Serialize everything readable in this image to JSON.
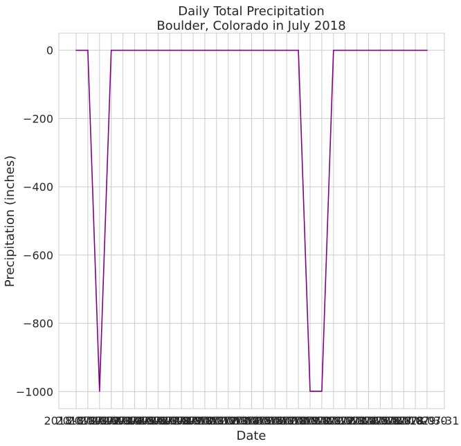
{
  "chart_data": {
    "type": "line",
    "title": "Daily Total Precipitation",
    "subtitle": "Boulder, Colorado in July 2018",
    "xlabel": "Date",
    "ylabel": "Precipitation (inches)",
    "x": [
      "2018-07-01",
      "2018-07-02",
      "2018-07-03",
      "2018-07-04",
      "2018-07-05",
      "2018-07-06",
      "2018-07-07",
      "2018-07-08",
      "2018-07-09",
      "2018-07-10",
      "2018-07-11",
      "2018-07-12",
      "2018-07-13",
      "2018-07-14",
      "2018-07-15",
      "2018-07-16",
      "2018-07-17",
      "2018-07-18",
      "2018-07-19",
      "2018-07-20",
      "2018-07-21",
      "2018-07-22",
      "2018-07-23",
      "2018-07-24",
      "2018-07-25",
      "2018-07-26",
      "2018-07-27",
      "2018-07-28",
      "2018-07-29",
      "2018-07-30",
      "2018-07-31"
    ],
    "series": [
      {
        "color": "#800080",
        "values": [
          0,
          0,
          -999,
          0,
          0,
          0,
          0,
          0,
          0,
          0,
          0,
          0,
          0,
          0,
          0,
          0,
          0,
          0,
          0,
          0,
          -999,
          -999,
          0,
          0,
          0,
          0,
          0,
          0,
          0,
          0,
          0
        ]
      }
    ],
    "ylim": [
      -1050,
      50
    ],
    "yticks": [
      0,
      -200,
      -400,
      -600,
      -800,
      -1000
    ],
    "ytick_labels": [
      "0",
      "−200",
      "−400",
      "−600",
      "−800",
      "−1000"
    ],
    "xtick_labels": [
      "2018-07-01",
      "2018-07-02",
      "2018-07-03",
      "2018-07-04",
      "2018-07-05",
      "2018-07-06",
      "2018-07-07",
      "2018-07-08",
      "2018-07-09",
      "2018-07-10",
      "2018-07-11",
      "2018-07-12",
      "2018-07-13",
      "2018-07-14",
      "2018-07-15",
      "2018-07-16",
      "2018-07-17",
      "2018-07-18",
      "2018-07-19",
      "2018-07-20",
      "2018-07-21",
      "2018-07-22",
      "2018-07-23",
      "2018-07-24",
      "2018-07-25",
      "2018-07-26",
      "2018-07-27",
      "2018-07-28",
      "2018-07-29",
      "2018-07-30",
      "2018-07-31"
    ],
    "grid": true,
    "colors": {
      "grid": "#cccccc",
      "frame": "#cccccc",
      "line": "#800080"
    }
  }
}
